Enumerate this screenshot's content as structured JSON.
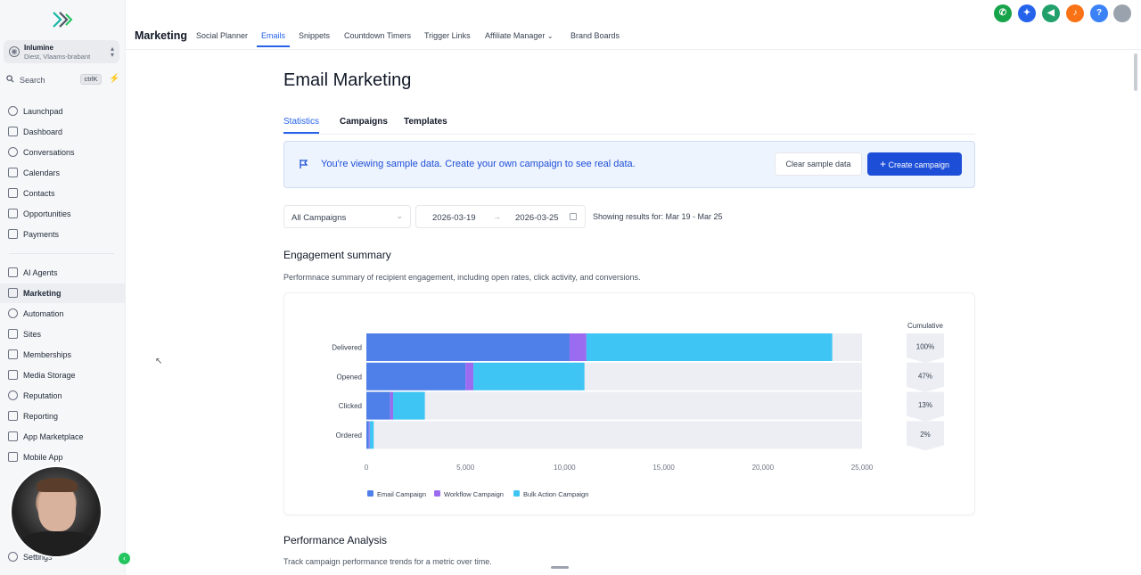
{
  "sidebar": {
    "account": {
      "name": "Inlumine",
      "location": "Diest, Vlaams-brabant"
    },
    "search": {
      "placeholder": "Search",
      "shortcut": "ctrlK"
    },
    "items": [
      {
        "label": "Launchpad"
      },
      {
        "label": "Dashboard"
      },
      {
        "label": "Conversations"
      },
      {
        "label": "Calendars"
      },
      {
        "label": "Contacts"
      },
      {
        "label": "Opportunities"
      },
      {
        "label": "Payments"
      },
      {
        "label": "AI Agents"
      },
      {
        "label": "Marketing"
      },
      {
        "label": "Automation"
      },
      {
        "label": "Sites"
      },
      {
        "label": "Memberships"
      },
      {
        "label": "Media Storage"
      },
      {
        "label": "Reputation"
      },
      {
        "label": "Reporting"
      },
      {
        "label": "App Marketplace"
      },
      {
        "label": "Mobile App"
      }
    ],
    "settings_label": "Settings",
    "active_item": "Marketing"
  },
  "header": {
    "section_title": "Marketing",
    "tabs": [
      {
        "label": "Social Planner"
      },
      {
        "label": "Emails"
      },
      {
        "label": "Snippets"
      },
      {
        "label": "Countdown Timers"
      },
      {
        "label": "Trigger Links"
      },
      {
        "label": "Affiliate Manager"
      },
      {
        "label": "Brand Boards"
      }
    ],
    "active_tab": "Emails",
    "action_colors": [
      "#16a34a",
      "#2563eb",
      "#22a06b",
      "#f97316",
      "#3b82f6"
    ],
    "help_label": "?"
  },
  "page": {
    "title": "Email Marketing",
    "subtabs": [
      {
        "label": "Statistics"
      },
      {
        "label": "Campaigns"
      },
      {
        "label": "Templates"
      }
    ],
    "active_subtab": "Statistics",
    "banner": {
      "message": "You're viewing sample data. Create your own campaign to see real data.",
      "clear_label": "Clear sample data",
      "create_label": "Create campaign"
    },
    "filters": {
      "campaign_select": "All Campaigns",
      "date_from": "2026-03-19",
      "date_to": "2026-03-25",
      "results_text": "Showing results for: Mar 19 - Mar 25"
    },
    "engagement": {
      "title": "Engagement summary",
      "subtitle": "Performnace summary of recipient engagement, including open rates, click activity, and conversions."
    },
    "performance": {
      "title": "Performance Analysis",
      "subtitle": "Track campaign performance trends for a metric over time."
    }
  },
  "chart_data": {
    "type": "bar",
    "orientation": "horizontal",
    "stacked": true,
    "categories": [
      "Delivered",
      "Opened",
      "Clicked",
      "Ordered"
    ],
    "series": [
      {
        "name": "Email Campaign",
        "color": "#4f7fe8",
        "values": [
          10250,
          5000,
          1200,
          120
        ]
      },
      {
        "name": "Workflow Campaign",
        "color": "#9b6cf0",
        "values": [
          850,
          400,
          150,
          50
        ]
      },
      {
        "name": "Bulk Action Campaign",
        "color": "#3fc5f3",
        "values": [
          12400,
          5600,
          1600,
          200
        ]
      }
    ],
    "cumulative_title": "Cumulative",
    "cumulative": [
      "100%",
      "47%",
      "13%",
      "2%"
    ],
    "xlim": [
      0,
      25000
    ],
    "xticks": [
      0,
      5000,
      10000,
      15000,
      20000,
      25000
    ],
    "xtick_labels": [
      "0",
      "5,000",
      "10,000",
      "15,000",
      "20,000",
      "25,000"
    ],
    "legend_position": "bottom"
  }
}
